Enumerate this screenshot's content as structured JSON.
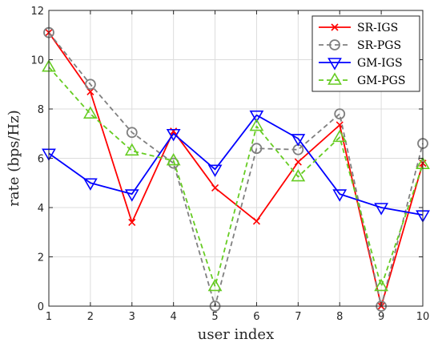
{
  "chart_data": {
    "type": "line",
    "xlabel": "user index",
    "ylabel": "rate (bps/Hz)",
    "xlim": [
      1,
      10
    ],
    "ylim": [
      0,
      12
    ],
    "xticks": [
      "1",
      "2",
      "3",
      "4",
      "5",
      "6",
      "7",
      "8",
      "9",
      "10"
    ],
    "yticks": [
      "0",
      "2",
      "4",
      "6",
      "8",
      "10",
      "12"
    ],
    "x": [
      1,
      2,
      3,
      4,
      5,
      6,
      7,
      8,
      9,
      10
    ],
    "grid": true,
    "legend_position": "top-right",
    "series": [
      {
        "name": "SR-IGS",
        "color": "#ff0000",
        "dash": "solid",
        "marker": "x",
        "values": [
          11.1,
          8.7,
          3.4,
          7.1,
          4.8,
          3.45,
          5.85,
          7.35,
          0.0,
          5.8
        ]
      },
      {
        "name": "SR-PGS",
        "color": "#808080",
        "dash": "dashed",
        "marker": "circle",
        "values": [
          11.1,
          9.0,
          7.05,
          5.8,
          0.0,
          6.4,
          6.35,
          7.8,
          0.0,
          6.6
        ]
      },
      {
        "name": "GM-IGS",
        "color": "#0000ff",
        "dash": "solid",
        "marker": "triangle-down",
        "values": [
          6.2,
          5.0,
          4.55,
          7.0,
          5.55,
          7.75,
          6.8,
          4.55,
          4.0,
          3.7
        ]
      },
      {
        "name": "GM-PGS",
        "color": "#66cc22",
        "dash": "dashed",
        "marker": "triangle-up",
        "values": [
          9.7,
          7.8,
          6.3,
          5.9,
          0.8,
          7.3,
          5.25,
          6.85,
          0.8,
          5.75
        ]
      }
    ]
  }
}
